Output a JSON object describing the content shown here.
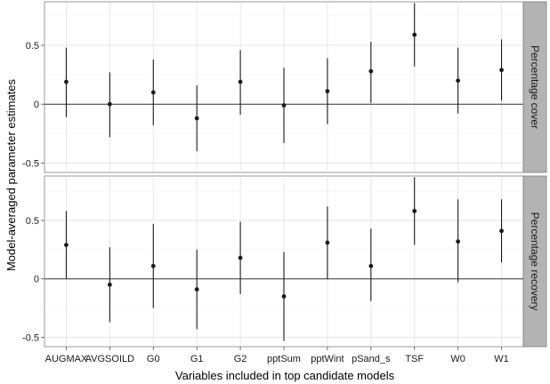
{
  "chart_data": {
    "type": "scatter",
    "subtype": "point-estimate with error bars, faceted",
    "xlabel": "Variables included in top candidate models",
    "ylabel": "Model-averaged parameter estimates",
    "categories": [
      "AUGMAX",
      "AVGSOILD",
      "G0",
      "G1",
      "G2",
      "pptSum",
      "pptWint",
      "pSand_s",
      "TSF",
      "W0",
      "W1"
    ],
    "yticks": [
      "-0.5",
      "0",
      "0.5"
    ],
    "reference_line": 0,
    "grid": true,
    "facets": [
      {
        "label": "Percentage cover",
        "ylim": [
          -0.58,
          0.87
        ],
        "estimates": [
          0.19,
          0.0,
          0.1,
          -0.12,
          0.19,
          -0.01,
          0.11,
          0.28,
          0.59,
          0.2,
          0.29
        ],
        "lower": [
          -0.11,
          -0.28,
          -0.18,
          -0.4,
          -0.09,
          -0.33,
          -0.17,
          0.01,
          0.32,
          -0.08,
          0.03
        ],
        "upper": [
          0.48,
          0.27,
          0.38,
          0.16,
          0.46,
          0.31,
          0.39,
          0.53,
          0.86,
          0.48,
          0.55
        ]
      },
      {
        "label": "Percentage recovery",
        "ylim": [
          -0.58,
          0.88
        ],
        "estimates": [
          0.29,
          -0.05,
          0.11,
          -0.09,
          0.18,
          -0.15,
          0.31,
          0.11,
          0.58,
          0.32,
          0.41
        ],
        "lower": [
          0.0,
          -0.37,
          -0.25,
          -0.43,
          -0.13,
          -0.53,
          0.0,
          -0.19,
          0.29,
          -0.03,
          0.14
        ],
        "upper": [
          0.58,
          0.27,
          0.47,
          0.25,
          0.49,
          0.23,
          0.62,
          0.43,
          0.87,
          0.68,
          0.68
        ]
      }
    ]
  }
}
